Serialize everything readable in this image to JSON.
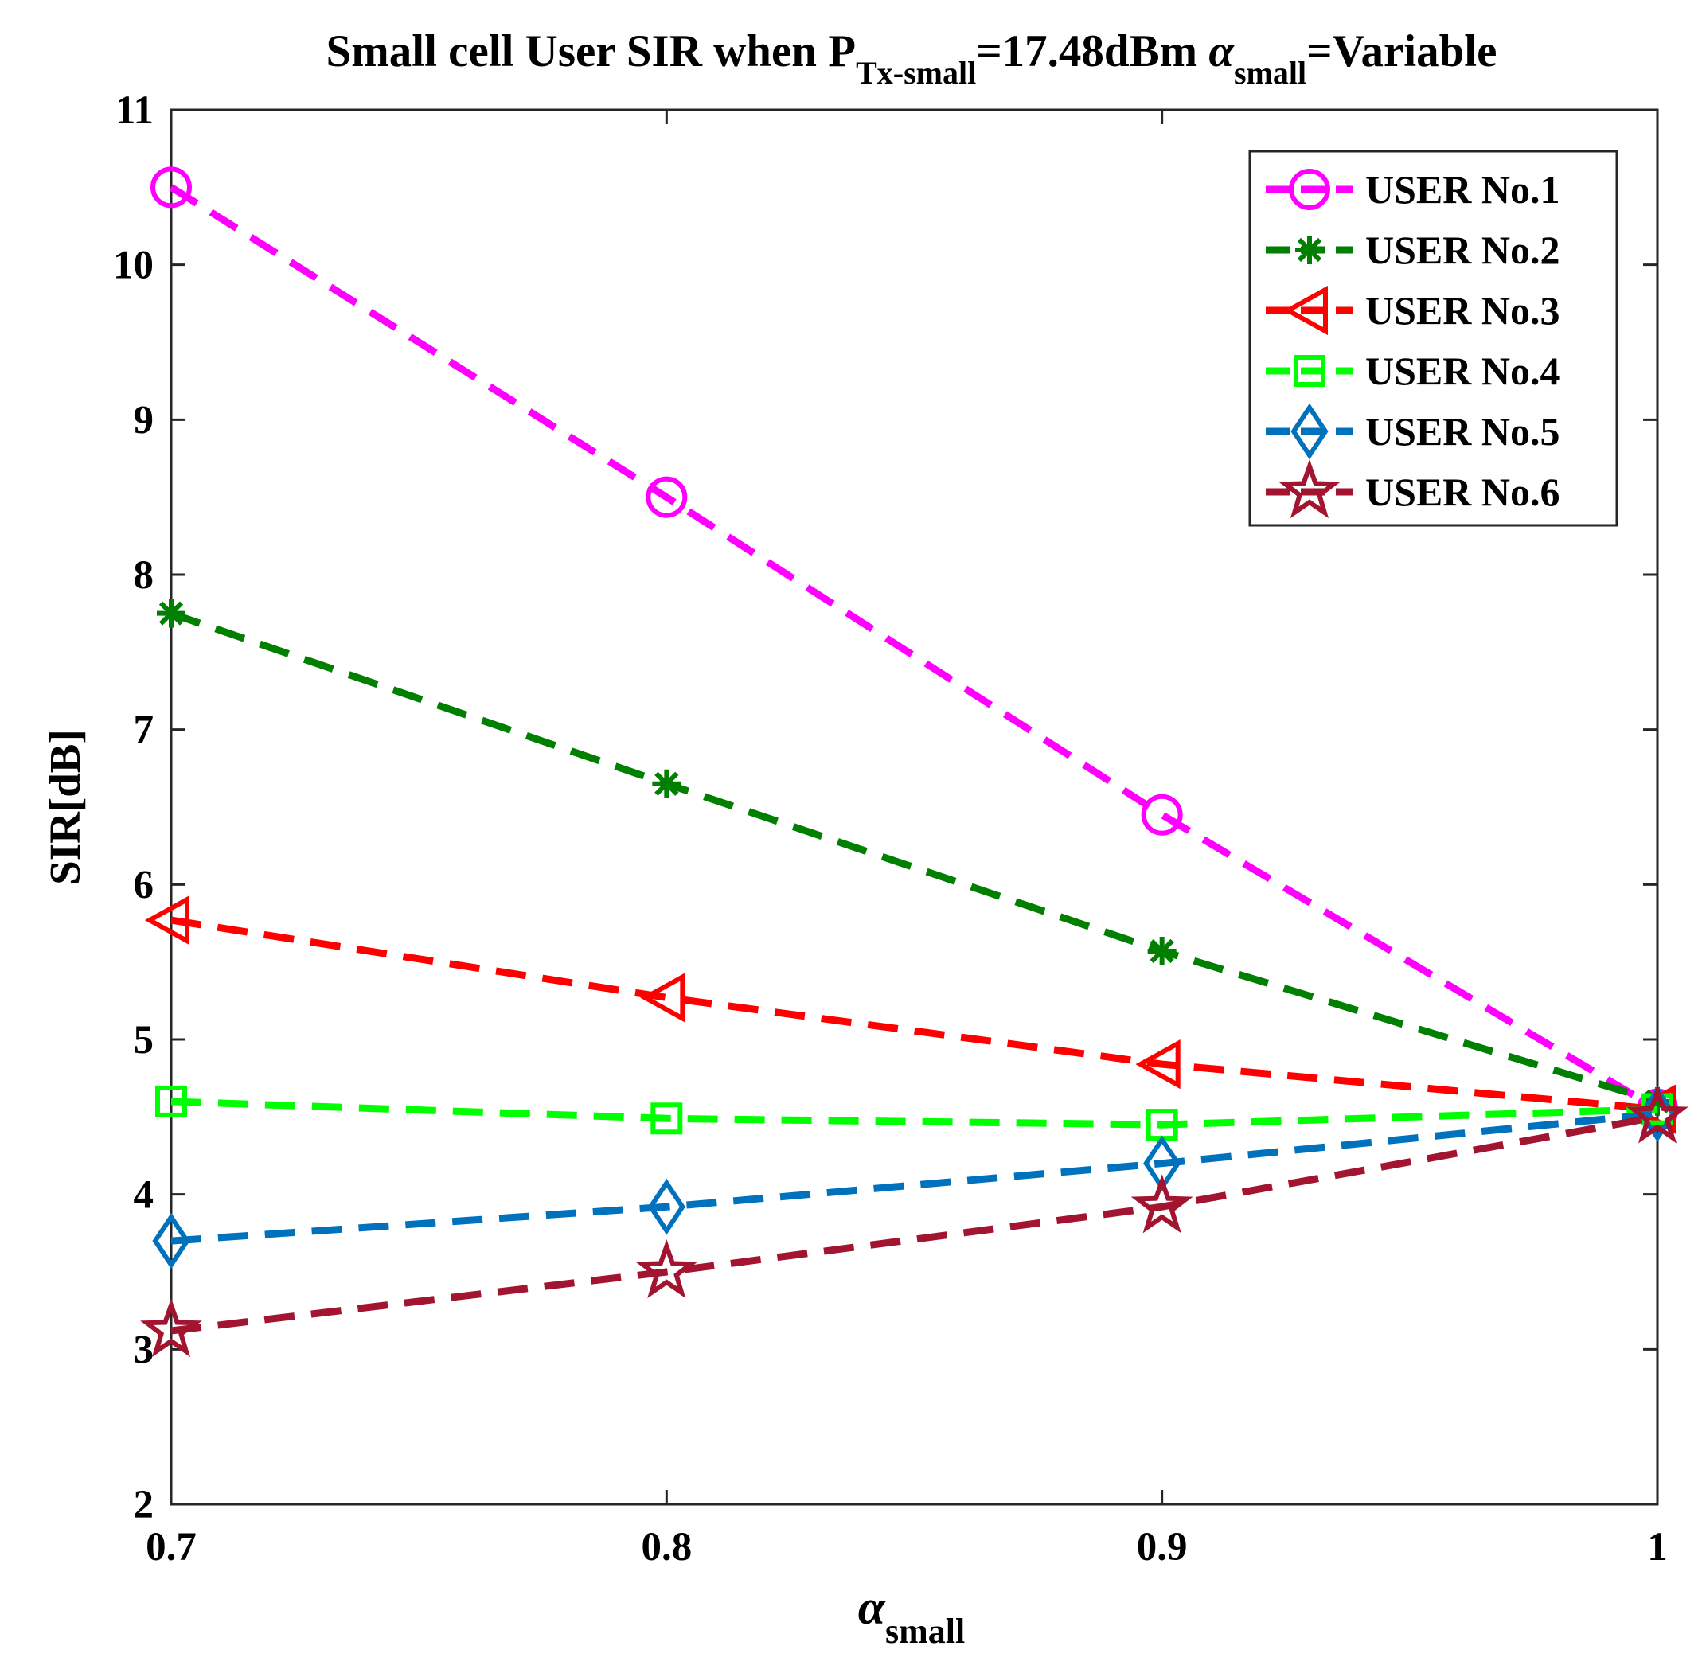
{
  "chart_data": {
    "type": "line",
    "title": {
      "prefix": "Small cell User SIR when P",
      "p_sub": "Tx-small",
      "mid": "=17.48dBm ",
      "alpha": "α",
      "alpha_sub": "small",
      "suffix": "=Variable"
    },
    "xlabel": {
      "symbol": "α",
      "sub": "small"
    },
    "ylabel": "SIR[dB]",
    "x": [
      0.7,
      0.8,
      0.9,
      1.0
    ],
    "xlim": [
      0.7,
      1.0
    ],
    "ylim": [
      2,
      11
    ],
    "xticks": [
      {
        "value": 0.7,
        "label": "0.7"
      },
      {
        "value": 0.8,
        "label": "0.8"
      },
      {
        "value": 0.9,
        "label": "0.9"
      },
      {
        "value": 1.0,
        "label": "1"
      }
    ],
    "yticks": [
      {
        "value": 2,
        "label": "2"
      },
      {
        "value": 3,
        "label": "3"
      },
      {
        "value": 4,
        "label": "4"
      },
      {
        "value": 5,
        "label": "5"
      },
      {
        "value": 6,
        "label": "6"
      },
      {
        "value": 7,
        "label": "7"
      },
      {
        "value": 8,
        "label": "8"
      },
      {
        "value": 9,
        "label": "9"
      },
      {
        "value": 10,
        "label": "10"
      },
      {
        "value": 11,
        "label": "11"
      }
    ],
    "grid": false,
    "legend_position": "top-right",
    "series": [
      {
        "name": "USER No.1",
        "color": "#ff00ff",
        "marker": "circle",
        "values": [
          10.5,
          8.5,
          6.45,
          4.55
        ]
      },
      {
        "name": "USER No.2",
        "color": "#007f00",
        "marker": "asterisk",
        "values": [
          7.75,
          6.65,
          5.57,
          4.6
        ]
      },
      {
        "name": "USER No.3",
        "color": "#ff0000",
        "marker": "triangle-left",
        "values": [
          5.77,
          5.27,
          4.84,
          4.55
        ]
      },
      {
        "name": "USER No.4",
        "color": "#00ff00",
        "marker": "square",
        "values": [
          4.6,
          4.49,
          4.45,
          4.55
        ]
      },
      {
        "name": "USER No.5",
        "color": "#0072bd",
        "marker": "diamond",
        "values": [
          3.7,
          3.92,
          4.2,
          4.52
        ]
      },
      {
        "name": "USER No.6",
        "color": "#a2142f",
        "marker": "star",
        "values": [
          3.12,
          3.5,
          3.92,
          4.5
        ]
      }
    ]
  }
}
